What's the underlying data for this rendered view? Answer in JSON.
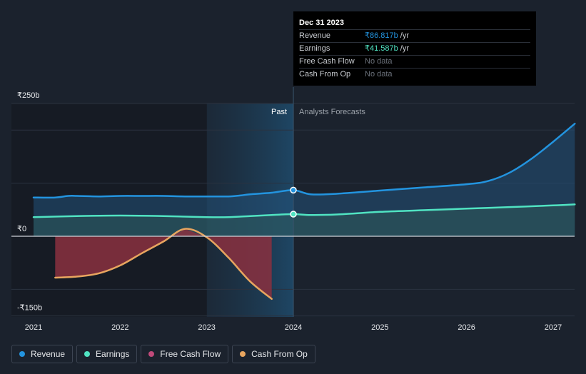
{
  "tooltip": {
    "date": "Dec 31 2023",
    "rows": [
      {
        "label": "Revenue",
        "value": "₹86.817b",
        "unit": "/yr",
        "color": "#2394df"
      },
      {
        "label": "Earnings",
        "value": "₹41.587b",
        "unit": "/yr",
        "color": "#50e3c2"
      },
      {
        "label": "Free Cash Flow",
        "value": "No data",
        "unit": "",
        "color": "#6b717b"
      },
      {
        "label": "Cash From Op",
        "value": "No data",
        "unit": "",
        "color": "#6b717b"
      }
    ]
  },
  "labels": {
    "past": "Past",
    "forecast": "Analysts Forecasts"
  },
  "legend": [
    {
      "label": "Revenue",
      "color": "#2394df"
    },
    {
      "label": "Earnings",
      "color": "#50e3c2"
    },
    {
      "label": "Free Cash Flow",
      "color": "#c04a7a"
    },
    {
      "label": "Cash From Op",
      "color": "#e8a55f"
    }
  ],
  "chart_data": {
    "type": "line",
    "title": "",
    "xlabel": "",
    "ylabel": "",
    "ylim": [
      -150,
      250
    ],
    "xlim": [
      2021.0,
      2027.25
    ],
    "y_ticks": [
      {
        "value": 250,
        "label": "₹250b"
      },
      {
        "value": 0,
        "label": "₹0"
      },
      {
        "value": -150,
        "label": "-₹150b"
      }
    ],
    "x_ticks": [
      {
        "value": 2021,
        "label": "2021"
      },
      {
        "value": 2022,
        "label": "2022"
      },
      {
        "value": 2023,
        "label": "2023"
      },
      {
        "value": 2024,
        "label": "2024"
      },
      {
        "value": 2025,
        "label": "2025"
      },
      {
        "value": 2026,
        "label": "2026"
      },
      {
        "value": 2027,
        "label": "2027"
      }
    ],
    "past_start": 2023.0,
    "divider": 2024.0,
    "grid": true,
    "legend_position": "bottom-left",
    "series": [
      {
        "name": "Revenue",
        "color": "#2394df",
        "x": [
          2021.0,
          2021.25,
          2021.4,
          2021.5,
          2021.75,
          2022.0,
          2022.25,
          2022.5,
          2022.75,
          2023.0,
          2023.25,
          2023.4,
          2023.5,
          2023.75,
          2024.0,
          2024.2,
          2024.5,
          2025.0,
          2025.5,
          2026.0,
          2026.25,
          2026.5,
          2026.75,
          2027.0,
          2027.25
        ],
        "y": [
          73,
          73,
          76,
          76,
          75,
          76,
          76,
          76,
          75,
          75,
          75,
          77,
          79,
          82,
          86.8,
          79,
          80,
          86,
          92,
          98,
          104,
          120,
          146,
          178,
          212
        ]
      },
      {
        "name": "Earnings",
        "color": "#50e3c2",
        "x": [
          2021.0,
          2021.5,
          2022.0,
          2022.5,
          2023.0,
          2023.25,
          2023.5,
          2023.75,
          2024.0,
          2024.2,
          2024.5,
          2025.0,
          2025.5,
          2026.0,
          2026.5,
          2027.0,
          2027.25
        ],
        "y": [
          36,
          38,
          39,
          38,
          36,
          36,
          38,
          40,
          41.6,
          40,
          41,
          46,
          49,
          52,
          55,
          58,
          60
        ]
      },
      {
        "name": "Free Cash Flow",
        "color": "#c04a7a",
        "x": [
          2021.25,
          2021.5,
          2021.75,
          2022.0,
          2022.25,
          2022.5,
          2022.75,
          2023.0,
          2023.25,
          2023.5,
          2023.75
        ],
        "y": [
          -78,
          -76,
          -70,
          -55,
          -32,
          -10,
          14,
          -2,
          -40,
          -85,
          -118
        ]
      },
      {
        "name": "Cash From Op",
        "color": "#e8a55f",
        "x": [
          2021.25,
          2021.5,
          2021.75,
          2022.0,
          2022.25,
          2022.5,
          2022.75,
          2023.0,
          2023.25,
          2023.5,
          2023.75
        ],
        "y": [
          -78,
          -76,
          -70,
          -55,
          -32,
          -10,
          14,
          -2,
          -40,
          -85,
          -118
        ]
      }
    ],
    "highlight_points": [
      {
        "series": "Revenue",
        "x": 2024.0,
        "y": 86.8
      },
      {
        "series": "Earnings",
        "x": 2024.0,
        "y": 41.6
      }
    ]
  }
}
